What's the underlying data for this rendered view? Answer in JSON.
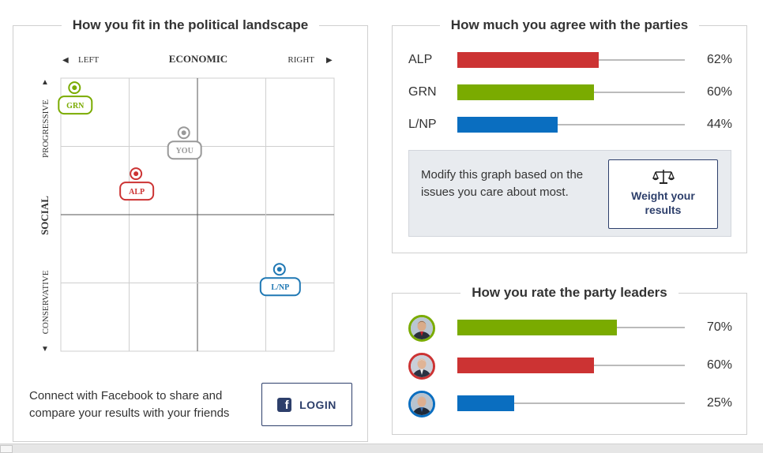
{
  "landscape": {
    "title": "How you fit in the political landscape",
    "axis_left": "LEFT",
    "axis_economic": "ECONOMIC",
    "axis_right": "RIGHT",
    "axis_progressive": "PROGRESSIVE",
    "axis_social": "SOCIAL",
    "axis_conservative": "CONSERVATIVE",
    "markers": [
      {
        "label": "GRN",
        "x": -0.9,
        "y": 0.93,
        "color": "#7aab00"
      },
      {
        "label": "YOU",
        "x": -0.1,
        "y": 0.6,
        "color": "#999999"
      },
      {
        "label": "ALP",
        "x": -0.45,
        "y": 0.3,
        "color": "#cc3333"
      },
      {
        "label": "L/NP",
        "x": 0.6,
        "y": -0.4,
        "color": "#1f78b4"
      }
    ],
    "facebook_text": "Connect with Facebook to share and compare your results with your friends",
    "login_label": "LOGIN"
  },
  "agreement": {
    "title": "How much you agree with the parties",
    "rows": [
      {
        "name": "ALP",
        "percent": 62,
        "percent_label": "62%",
        "color": "#cc3333"
      },
      {
        "name": "GRN",
        "percent": 60,
        "percent_label": "60%",
        "color": "#7aab00"
      },
      {
        "name": "L/NP",
        "percent": 44,
        "percent_label": "44%",
        "color": "#0a6ec0"
      }
    ],
    "modify_text": "Modify this graph based on the issues you care about most.",
    "weight_button_line1": "Weight your",
    "weight_button_line2": "results"
  },
  "leaders": {
    "title": "How you rate the party leaders",
    "rows": [
      {
        "percent": 70,
        "percent_label": "70%",
        "color": "#7aab00"
      },
      {
        "percent": 60,
        "percent_label": "60%",
        "color": "#cc3333"
      },
      {
        "percent": 25,
        "percent_label": "25%",
        "color": "#0a6ec0"
      }
    ]
  }
}
